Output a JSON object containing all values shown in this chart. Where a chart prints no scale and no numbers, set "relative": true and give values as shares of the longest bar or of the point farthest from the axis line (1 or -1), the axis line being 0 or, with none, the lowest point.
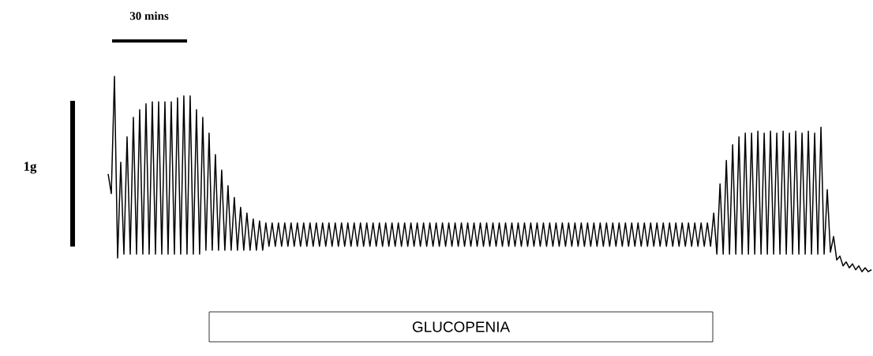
{
  "chart_data": {
    "type": "line",
    "relative": true,
    "color": "#000000",
    "categories": [
      null,
      null,
      null,
      null,
      null,
      null,
      null,
      null,
      null,
      null,
      null,
      null,
      null,
      null,
      null,
      null,
      null,
      null,
      null,
      null,
      null,
      null,
      null,
      null,
      null,
      null,
      null,
      null,
      null,
      null,
      null,
      null,
      null,
      null,
      null,
      null,
      null,
      null,
      null,
      null,
      null,
      null,
      null,
      null,
      null,
      null,
      null,
      null,
      null,
      null,
      null,
      null,
      null,
      null,
      null,
      null,
      null,
      null,
      null,
      null,
      null,
      null,
      null,
      null,
      null,
      null,
      null,
      null,
      null,
      null,
      null,
      null,
      null,
      null,
      null,
      null,
      null,
      null,
      null,
      null,
      null,
      null,
      null,
      null,
      null,
      null,
      null,
      null,
      null,
      null,
      null,
      null,
      null,
      null,
      null,
      null,
      null,
      null,
      null,
      null,
      null,
      null,
      null,
      null,
      null,
      null,
      null,
      null,
      null,
      null,
      null,
      null,
      null,
      null,
      null,
      null,
      null,
      null,
      null,
      null,
      null,
      null,
      null,
      null,
      null,
      null,
      null,
      null,
      null,
      null,
      null,
      null,
      null,
      null,
      null,
      null,
      null,
      null,
      null,
      null,
      null,
      null,
      null,
      null,
      null,
      null,
      null,
      null,
      null,
      null,
      null,
      null,
      null,
      null,
      null,
      null,
      null,
      null,
      null,
      null,
      null,
      null,
      null,
      null,
      null,
      null,
      null,
      null,
      null,
      null,
      null,
      null,
      null,
      null,
      null,
      null,
      null,
      null,
      null,
      null,
      null,
      null,
      null,
      null,
      null,
      null,
      null,
      null,
      null,
      null,
      null,
      null,
      null,
      null,
      null,
      null,
      null,
      null,
      null,
      null,
      null,
      null,
      null,
      null,
      null,
      null,
      null,
      null,
      null,
      null,
      null,
      null,
      null,
      null,
      null,
      null,
      null,
      null,
      null,
      null,
      null,
      null,
      null,
      null,
      null,
      null,
      null,
      null,
      null,
      null,
      null,
      null,
      null,
      null,
      null,
      null,
      null,
      null,
      null,
      null,
      null,
      null,
      null
    ],
    "values": [
      0.5,
      0.4,
      1,
      0.07,
      0.56,
      0.09,
      0.69,
      0.09,
      0.79,
      0.09,
      0.83,
      0.09,
      0.86,
      0.09,
      0.87,
      0.09,
      0.87,
      0.09,
      0.87,
      0.09,
      0.87,
      0.09,
      0.89,
      0.09,
      0.9,
      0.09,
      0.9,
      0.09,
      0.83,
      0.09,
      0.79,
      0.11,
      0.71,
      0.11,
      0.6,
      0.11,
      0.52,
      0.11,
      0.44,
      0.11,
      0.38,
      0.11,
      0.33,
      0.11,
      0.3,
      0.11,
      0.27,
      0.11,
      0.26,
      0.11,
      0.25,
      0.13,
      0.25,
      0.13,
      0.25,
      0.13,
      0.25,
      0.13,
      0.25,
      0.13,
      0.25,
      0.13,
      0.25,
      0.13,
      0.25,
      0.13,
      0.25,
      0.13,
      0.25,
      0.13,
      0.25,
      0.13,
      0.25,
      0.13,
      0.25,
      0.13,
      0.25,
      0.13,
      0.25,
      0.13,
      0.25,
      0.13,
      0.25,
      0.13,
      0.25,
      0.13,
      0.25,
      0.13,
      0.25,
      0.13,
      0.25,
      0.13,
      0.25,
      0.13,
      0.25,
      0.13,
      0.25,
      0.13,
      0.25,
      0.13,
      0.25,
      0.13,
      0.25,
      0.13,
      0.25,
      0.13,
      0.25,
      0.13,
      0.25,
      0.13,
      0.25,
      0.13,
      0.25,
      0.13,
      0.25,
      0.13,
      0.25,
      0.13,
      0.25,
      0.13,
      0.25,
      0.13,
      0.25,
      0.13,
      0.25,
      0.13,
      0.25,
      0.13,
      0.25,
      0.13,
      0.25,
      0.13,
      0.25,
      0.13,
      0.25,
      0.13,
      0.25,
      0.13,
      0.25,
      0.13,
      0.25,
      0.13,
      0.25,
      0.13,
      0.25,
      0.13,
      0.25,
      0.13,
      0.25,
      0.13,
      0.25,
      0.13,
      0.25,
      0.13,
      0.25,
      0.13,
      0.25,
      0.13,
      0.25,
      0.13,
      0.25,
      0.13,
      0.25,
      0.13,
      0.25,
      0.13,
      0.25,
      0.13,
      0.25,
      0.13,
      0.25,
      0.13,
      0.25,
      0.13,
      0.25,
      0.13,
      0.25,
      0.13,
      0.25,
      0.13,
      0.25,
      0.13,
      0.25,
      0.13,
      0.25,
      0.13,
      0.25,
      0.13,
      0.25,
      0.13,
      0.25,
      0.13,
      0.3,
      0.09,
      0.45,
      0.09,
      0.57,
      0.09,
      0.65,
      0.09,
      0.69,
      0.09,
      0.71,
      0.09,
      0.71,
      0.09,
      0.72,
      0.09,
      0.71,
      0.09,
      0.72,
      0.09,
      0.71,
      0.09,
      0.72,
      0.09,
      0.71,
      0.09,
      0.72,
      0.09,
      0.71,
      0.09,
      0.72,
      0.09,
      0.71,
      0.09,
      0.74,
      0.09,
      0.42,
      0.1,
      0.18,
      0.06,
      0.08,
      0.03,
      0.05,
      0.02,
      0.04,
      0.01,
      0.03,
      0,
      0.02,
      0,
      0.01
    ],
    "annotations": [
      "30 mins",
      "1g",
      "GLUCOPENIA"
    ]
  }
}
